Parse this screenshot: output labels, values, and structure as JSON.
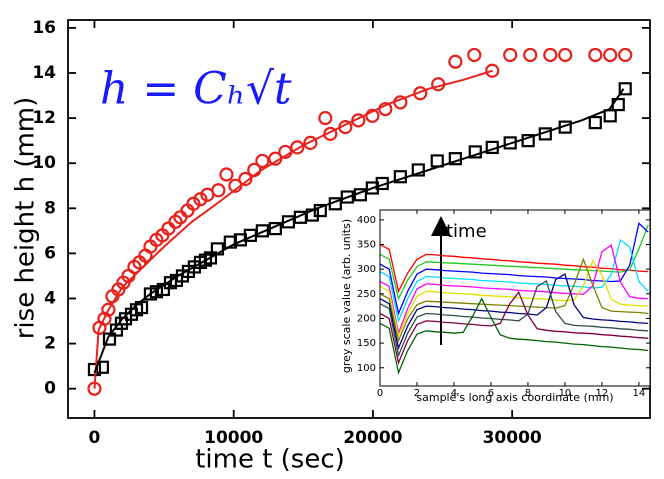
{
  "chart_data": [
    {
      "type": "scatter",
      "xlabel": "time t (sec)",
      "ylabel": "rise height h (mm)",
      "annotation": "h = Cₕ√t",
      "annotation_color": "#1a1aff",
      "xlim": [
        -1900,
        39900
      ],
      "ylim": [
        -1.3,
        16.35
      ],
      "xticks": [
        0,
        10000,
        20000,
        30000
      ],
      "yticks": [
        0,
        2,
        4,
        6,
        8,
        10,
        12,
        14,
        16
      ],
      "series": [
        {
          "color": "#e8211c",
          "marker": "circle",
          "x": [
            0,
            360,
            720,
            1000,
            1290,
            1720,
            2080,
            2440,
            2870,
            3230,
            3660,
            4020,
            4450,
            4880,
            5310,
            5820,
            6170,
            6680,
            7110,
            7610,
            8110,
            8900,
            9480,
            10120,
            10840,
            11480,
            12060,
            12990,
            13710,
            14570,
            15510,
            16580,
            16940,
            18020,
            18950,
            19960,
            20890,
            21970,
            23400,
            24690,
            25920,
            27280,
            28570,
            29860,
            31300,
            32740,
            33810,
            35970,
            37040,
            38120
          ],
          "values": [
            0,
            2.7,
            3.1,
            3.5,
            4.1,
            4.4,
            4.7,
            5.0,
            5.4,
            5.6,
            5.9,
            6.3,
            6.6,
            6.8,
            7.1,
            7.4,
            7.6,
            7.9,
            8.2,
            8.4,
            8.6,
            8.8,
            9.5,
            9.0,
            9.3,
            9.7,
            10.1,
            10.2,
            10.5,
            10.7,
            10.9,
            12.0,
            11.3,
            11.6,
            11.9,
            12.1,
            12.4,
            12.7,
            13.1,
            13.5,
            14.5,
            14.8,
            14.1,
            14.8,
            14.8,
            14.8,
            14.8,
            14.8,
            14.8,
            14.8
          ]
        },
        {
          "color": "#000000",
          "marker": "square",
          "x": [
            0,
            570,
            1080,
            1580,
            1940,
            2230,
            2660,
            3020,
            3380,
            4020,
            4450,
            4950,
            5460,
            5890,
            6320,
            6750,
            7180,
            7610,
            7970,
            8330,
            8830,
            9760,
            10480,
            11200,
            12060,
            12990,
            13930,
            14790,
            15650,
            16220,
            17300,
            18160,
            19100,
            19960,
            20670,
            21970,
            23260,
            24620,
            25920,
            27350,
            28570,
            29860,
            31150,
            32380,
            33810,
            35970,
            37040,
            37620,
            38120
          ],
          "values": [
            0.85,
            0.95,
            2.2,
            2.6,
            2.9,
            3.1,
            3.3,
            3.5,
            3.6,
            4.2,
            4.3,
            4.4,
            4.7,
            4.8,
            5.0,
            5.2,
            5.4,
            5.6,
            5.7,
            5.8,
            6.2,
            6.5,
            6.6,
            6.8,
            7.0,
            7.1,
            7.4,
            7.6,
            7.7,
            7.9,
            8.2,
            8.5,
            8.6,
            8.9,
            9.1,
            9.4,
            9.7,
            10.1,
            10.2,
            10.5,
            10.7,
            10.9,
            11.0,
            11.3,
            11.6,
            11.8,
            12.1,
            12.6,
            13.3
          ]
        },
        {
          "color": "#e8211c",
          "marker": "line",
          "x": [
            0,
            300,
            1000,
            2000,
            3000,
            5000,
            7000,
            9000,
            12000,
            15000,
            18000,
            21000,
            24000,
            26500,
            28600
          ],
          "values": [
            0,
            2.6,
            3.5,
            4.5,
            5.1,
            6.3,
            7.4,
            8.3,
            9.7,
            10.8,
            11.7,
            12.6,
            13.3,
            13.7,
            14.1
          ]
        },
        {
          "color": "#000000",
          "marker": "line",
          "x": [
            0,
            500,
            1000,
            2000,
            3000,
            4000,
            6000,
            8000,
            10000,
            13000,
            16000,
            20000,
            24000,
            28000,
            32000,
            35000,
            37000,
            38000
          ],
          "values": [
            0.7,
            1.5,
            2.3,
            3.1,
            3.7,
            4.2,
            5.0,
            5.7,
            6.4,
            7.2,
            8.0,
            8.9,
            9.7,
            10.5,
            11.3,
            11.9,
            12.4,
            13.3
          ]
        }
      ]
    },
    {
      "type": "line",
      "xlabel": "sample's long axis coordinate (mm)",
      "ylabel": "grey scale value (arb. units)",
      "annotation": "time",
      "xlim": [
        0,
        14.6
      ],
      "ylim": [
        63,
        420
      ],
      "xticks": [
        0,
        2,
        4,
        6,
        8,
        10,
        12,
        14
      ],
      "yticks": [
        100,
        150,
        200,
        250,
        300,
        350,
        400
      ],
      "x": [
        0,
        0.5,
        1,
        1.5,
        2,
        2.5,
        3,
        3.5,
        4,
        4.5,
        5,
        5.5,
        6,
        6.5,
        7,
        7.5,
        8,
        8.5,
        9,
        9.5,
        10,
        10.5,
        11,
        11.5,
        12,
        12.5,
        13,
        13.5,
        14,
        14.5
      ],
      "series": [
        {
          "color": "#ff0000",
          "values": [
            350,
            340,
            255,
            292,
            320,
            330,
            329,
            327,
            326,
            324,
            323,
            321,
            320,
            318,
            317,
            315,
            314,
            312,
            311,
            310,
            308,
            307,
            305,
            304,
            302,
            301,
            299,
            298,
            296,
            295
          ]
        },
        {
          "color": "#22cc22",
          "values": [
            330,
            320,
            240,
            278,
            305,
            315,
            314,
            313,
            312,
            311,
            310,
            309,
            308,
            307,
            306,
            305,
            304,
            303,
            302,
            301,
            300,
            299,
            298,
            297,
            296,
            295,
            294,
            299,
            341,
            390
          ]
        },
        {
          "color": "#0000ff",
          "values": [
            310,
            300,
            210,
            255,
            290,
            300,
            299,
            297,
            296,
            295,
            294,
            292,
            291,
            290,
            289,
            287,
            286,
            285,
            284,
            282,
            281,
            280,
            279,
            277,
            276,
            275,
            276,
            308,
            393,
            375
          ]
        },
        {
          "color": "#00e0ff",
          "values": [
            295,
            285,
            195,
            240,
            275,
            285,
            284,
            282,
            281,
            280,
            279,
            277,
            276,
            275,
            274,
            272,
            271,
            270,
            269,
            267,
            266,
            265,
            264,
            262,
            263,
            289,
            359,
            345,
            275,
            255
          ]
        },
        {
          "color": "#ff00ff",
          "values": [
            275,
            265,
            170,
            220,
            260,
            270,
            269,
            267,
            266,
            265,
            264,
            262,
            261,
            260,
            259,
            257,
            256,
            255,
            254,
            252,
            251,
            250,
            249,
            266,
            335,
            349,
            274,
            244,
            241,
            240
          ]
        },
        {
          "color": "#e0e000",
          "values": [
            265,
            255,
            165,
            210,
            245,
            255,
            254,
            252,
            251,
            250,
            249,
            247,
            246,
            245,
            244,
            242,
            241,
            240,
            239,
            237,
            236,
            238,
            266,
            317,
            288,
            239,
            229,
            227,
            226,
            225
          ]
        },
        {
          "color": "#808000",
          "values": [
            250,
            240,
            155,
            200,
            228,
            235,
            234,
            233,
            232,
            231,
            230,
            229,
            228,
            227,
            226,
            225,
            224,
            223,
            222,
            221,
            226,
            269,
            320,
            268,
            222,
            215,
            214,
            213,
            212,
            210
          ]
        },
        {
          "color": "#000080",
          "values": [
            240,
            230,
            140,
            185,
            218,
            225,
            224,
            222,
            221,
            219,
            218,
            216,
            215,
            213,
            212,
            210,
            209,
            207,
            222,
            279,
            290,
            227,
            202,
            199,
            197,
            196,
            194,
            193,
            191,
            190
          ]
        },
        {
          "color": "#2f4f4f",
          "values": [
            230,
            220,
            125,
            170,
            203,
            210,
            209,
            207,
            206,
            204,
            203,
            201,
            200,
            198,
            197,
            195,
            209,
            265,
            276,
            214,
            190,
            186,
            185,
            184,
            182,
            181,
            179,
            178,
            176,
            175
          ]
        },
        {
          "color": "#800040",
          "values": [
            210,
            200,
            110,
            155,
            188,
            195,
            194,
            192,
            191,
            189,
            188,
            186,
            185,
            190,
            229,
            253,
            207,
            179,
            176,
            174,
            173,
            171,
            170,
            169,
            167,
            166,
            164,
            163,
            161,
            160
          ]
        },
        {
          "color": "#006400",
          "values": [
            190,
            180,
            90,
            135,
            168,
            175,
            173,
            172,
            170,
            172,
            204,
            240,
            202,
            167,
            160,
            158,
            157,
            155,
            153,
            152,
            150,
            148,
            147,
            145,
            143,
            142,
            140,
            138,
            137,
            135
          ]
        }
      ]
    }
  ]
}
